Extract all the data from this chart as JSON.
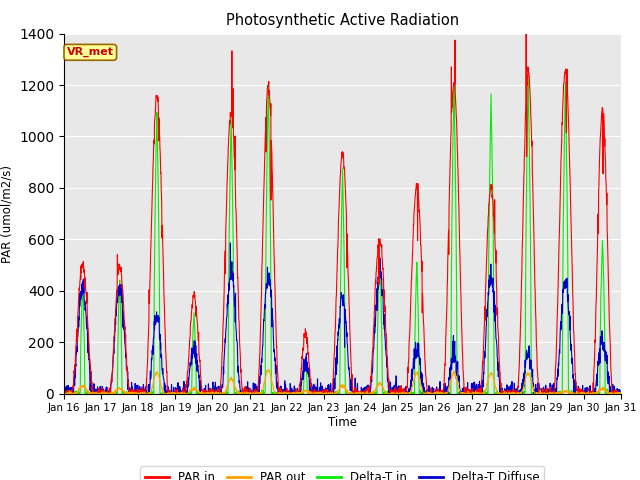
{
  "title": "Photosynthetic Active Radiation",
  "ylabel": "PAR (umol/m2/s)",
  "xlabel": "Time",
  "ylim": [
    0,
    1400
  ],
  "yticks": [
    0,
    200,
    400,
    600,
    800,
    1000,
    1200,
    1400
  ],
  "xtick_labels": [
    "Jan 16",
    "Jan 17",
    "Jan 18",
    "Jan 19",
    "Jan 20",
    "Jan 21",
    "Jan 22",
    "Jan 23",
    "Jan 24",
    "Jan 25",
    "Jan 26",
    "Jan 27",
    "Jan 28",
    "Jan 29",
    "Jan 30",
    "Jan 31"
  ],
  "legend_labels": [
    "PAR in",
    "PAR out",
    "Delta-T in",
    "Delta-T Diffuse"
  ],
  "legend_colors": [
    "#ff0000",
    "#ffa500",
    "#00ee00",
    "#0000cc"
  ],
  "annotation_text": "VR_met",
  "annotation_color": "#cc0000",
  "annotation_bg": "#ffff99",
  "annotation_border": "#996600",
  "background_color": "#e8e8e8",
  "n_days": 15,
  "n_pts_per_day": 144,
  "day_data": {
    "PAR_in_peaks": [
      500,
      490,
      1150,
      380,
      1100,
      1200,
      230,
      940,
      600,
      810,
      1210,
      800,
      1250,
      1260,
      1110
    ],
    "PAR_out_peaks": [
      30,
      20,
      80,
      20,
      60,
      90,
      10,
      30,
      40,
      80,
      80,
      80,
      80,
      10,
      20
    ],
    "DeltaT_in_peaks": [
      420,
      430,
      1100,
      310,
      1060,
      1200,
      130,
      870,
      530,
      510,
      1200,
      1160,
      1220,
      1200,
      600
    ],
    "DeltaT_diff_peaks": [
      410,
      420,
      300,
      180,
      470,
      460,
      120,
      380,
      460,
      170,
      160,
      450,
      160,
      440,
      210
    ],
    "PAR_in_width": [
      0.3,
      0.28,
      0.32,
      0.25,
      0.32,
      0.3,
      0.2,
      0.3,
      0.3,
      0.3,
      0.3,
      0.3,
      0.3,
      0.32,
      0.28
    ],
    "DeltaT_in_width": [
      0.06,
      0.06,
      0.08,
      0.06,
      0.08,
      0.08,
      0.05,
      0.07,
      0.07,
      0.06,
      0.08,
      0.08,
      0.08,
      0.08,
      0.07
    ],
    "DeltaT_diff_width": [
      0.28,
      0.28,
      0.25,
      0.22,
      0.28,
      0.28,
      0.18,
      0.26,
      0.28,
      0.22,
      0.2,
      0.28,
      0.2,
      0.28,
      0.24
    ]
  }
}
